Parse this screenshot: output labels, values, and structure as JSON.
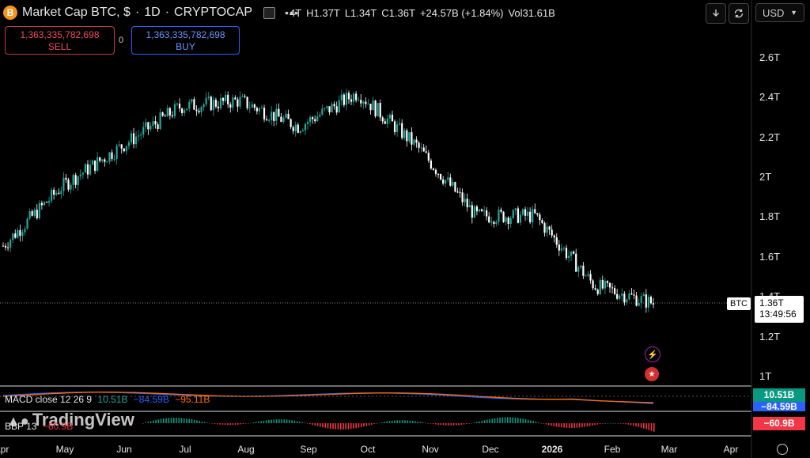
{
  "header": {
    "symbol_title": "Market Cap BTC, $",
    "interval": "1D",
    "source": "CRYPTOCAP",
    "logo_glyph": "B",
    "ohlc": {
      "open": "4T",
      "high": "H1.37T",
      "low": "L1.34T",
      "close": "C1.36T",
      "change": "+24.57B (+1.84%)",
      "volume": "Vol31.61B"
    },
    "currency": "USD",
    "icons": [
      "download-icon",
      "refresh-icon"
    ]
  },
  "trade": {
    "sell_price": "1,363,335,782,698",
    "sell_label": "SELL",
    "buy_price": "1,363,335,782,698",
    "buy_label": "BUY",
    "spread": "0"
  },
  "price_axis": [
    "2.6T",
    "2.4T",
    "2.2T",
    "2T",
    "1.8T",
    "1.6T",
    "1.4T",
    "1.2T",
    "1T"
  ],
  "time_axis": [
    "Apr",
    "May",
    "Jun",
    "Jul",
    "Aug",
    "Sep",
    "Oct",
    "Nov",
    "Dec",
    "2026",
    "Feb",
    "Mar",
    "Apr"
  ],
  "last_price": {
    "tag": "BTC",
    "value": "1.36T",
    "countdown": "13:49:56"
  },
  "macd": {
    "label": "MACD close 12 26 9",
    "v1": "10.51B",
    "v2": "−84.59B",
    "v3": "−95.11B",
    "badge1": "10.51B",
    "badge2": "−84.59B"
  },
  "bbp": {
    "label": "BBP 13",
    "value": "−60.9B",
    "badge": "−60.9B"
  },
  "watermark": "TradingView",
  "colors": {
    "up": "#26a69a",
    "down": "#ffffff",
    "sell": "#f04d5b",
    "buy": "#2962ff",
    "macd_line": "#2962ff",
    "signal_line": "#ff6d00",
    "bbp_neg": "#f23645",
    "bbp_pos": "#089981"
  },
  "chart_data": {
    "type": "candlestick",
    "x": [
      "Apr",
      "May",
      "Jun",
      "Jul",
      "Aug",
      "Sep",
      "Oct",
      "Nov",
      "Dec",
      "2026",
      "Feb"
    ],
    "close": [
      1.65,
      1.95,
      2.15,
      2.35,
      2.38,
      2.25,
      2.42,
      2.15,
      1.8,
      1.8,
      1.45
    ],
    "y_ticks": [
      "2.6T",
      "2.4T",
      "2.2T",
      "2T",
      "1.8T",
      "1.6T",
      "1.4T",
      "1.2T",
      "1T"
    ],
    "ylim": [
      1.0,
      2.6
    ],
    "last_value": 1.36
  }
}
